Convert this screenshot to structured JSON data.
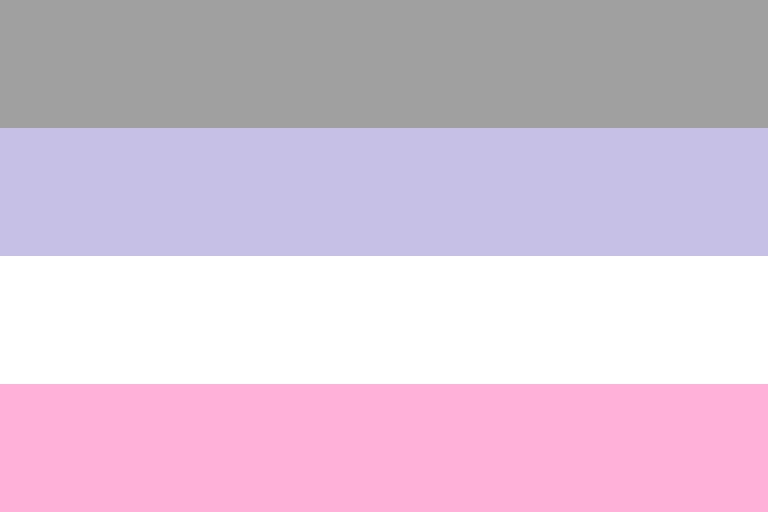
{
  "flag": {
    "stripes": [
      {
        "name": "gray",
        "color": "#a0a0a0"
      },
      {
        "name": "lavender",
        "color": "#c7bfe6"
      },
      {
        "name": "white",
        "color": "#ffffff"
      },
      {
        "name": "pink",
        "color": "#feb2d8"
      }
    ]
  }
}
